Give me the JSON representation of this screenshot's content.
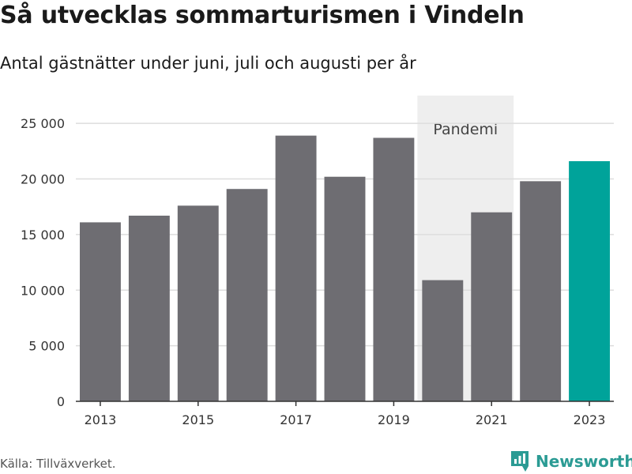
{
  "title": "Så utvecklas sommarturismen i Vindeln",
  "subtitle": "Antal gästnätter under juni, juli och augusti per år",
  "source": "Källa: Tillväxverket.",
  "brand": {
    "name": "Newsworthy",
    "icon": "newsworthy-chart-logo-icon"
  },
  "colors": {
    "bar": "#6e6d72",
    "highlight": "#00a39a",
    "shade": "#eeeeee",
    "grid": "#dddddd",
    "brand": "#2b9b94"
  },
  "chart_data": {
    "type": "bar",
    "categories": [
      "2013",
      "2014",
      "2015",
      "2016",
      "2017",
      "2018",
      "2019",
      "2020",
      "2021",
      "2022",
      "2023"
    ],
    "values": [
      16100,
      16700,
      17600,
      19100,
      23900,
      20200,
      23700,
      10900,
      17000,
      19800,
      21600
    ],
    "highlight_category": "2023",
    "x_tick_labels": [
      "2013",
      "2015",
      "2017",
      "2019",
      "2021",
      "2023"
    ],
    "y_ticks": [
      0,
      5000,
      10000,
      15000,
      20000,
      25000
    ],
    "y_tick_labels": [
      "0",
      "5 000",
      "10 000",
      "15 000",
      "20 000",
      "25 000"
    ],
    "ylim": [
      0,
      27500
    ],
    "grid": true,
    "annotation": {
      "label": "Pandemi",
      "from": "2020",
      "to": "2021"
    }
  }
}
